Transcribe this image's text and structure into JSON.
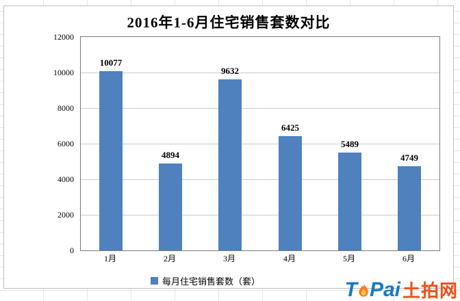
{
  "chart_data": {
    "type": "bar",
    "title": "2016年1-6月住宅销售套数对比",
    "categories": [
      "1月",
      "2月",
      "3月",
      "4月",
      "5月",
      "6月"
    ],
    "values": [
      10077,
      4894,
      9632,
      6425,
      5489,
      4749
    ],
    "xlabel": "",
    "ylabel": "",
    "ylim": [
      0,
      12000
    ],
    "ytick_interval": 2000,
    "grid": true,
    "value_labels": true,
    "legend_label": "每月住宅销售套数（套）",
    "legend_position": "bottom",
    "bar_color": "#4e81bd",
    "gridline_color": "#c9c9c9"
  },
  "watermark": {
    "t": "T",
    "pai": "Pai",
    "cn": "土拍网",
    "flame_color": "#ff7a1c",
    "blue": "#1779c4",
    "orange": "#ee4e18"
  }
}
